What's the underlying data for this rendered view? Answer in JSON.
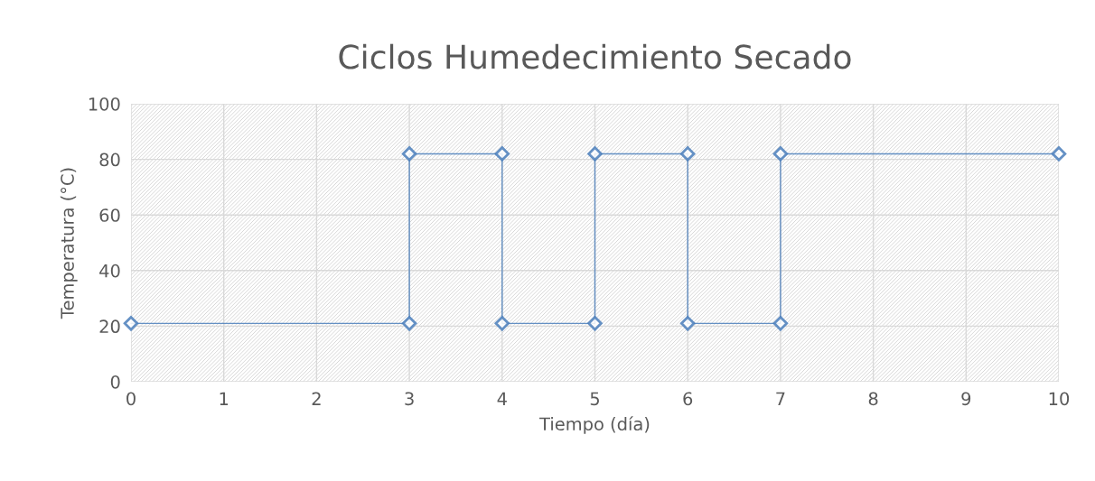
{
  "chart_data": {
    "type": "line",
    "title": "Ciclos Humedecimiento Secado",
    "xlabel": "Tiempo (día)",
    "ylabel": "Temperatura (°C)",
    "x": [
      0,
      3,
      3,
      4,
      4,
      5,
      5,
      6,
      6,
      7,
      7,
      10
    ],
    "series": [
      {
        "color": "#4a7ebb",
        "values": [
          21,
          21,
          82,
          82,
          21,
          21,
          82,
          82,
          21,
          21,
          82,
          82
        ]
      }
    ],
    "xlim": [
      0,
      10
    ],
    "xticks": [
      0,
      1,
      2,
      3,
      4,
      5,
      6,
      7,
      8,
      9,
      10
    ],
    "ylim": [
      0,
      100
    ],
    "yticks": [
      0,
      20,
      40,
      60,
      80,
      100
    ],
    "grid": true,
    "marker": "diamond",
    "line_style": "solid"
  }
}
